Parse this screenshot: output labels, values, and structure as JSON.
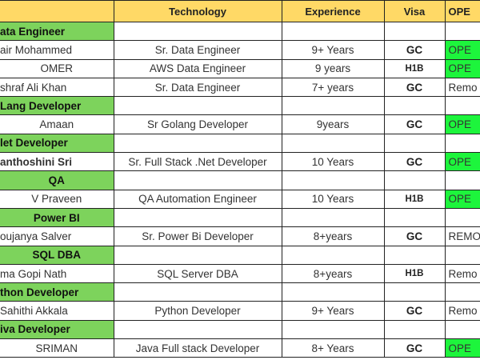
{
  "header": {
    "name": "",
    "technology": "Technology",
    "experience": "Experience",
    "visa": "Visa",
    "status": "OPE"
  },
  "colors": {
    "header_bg": "#ffd966",
    "category_bg": "#7dd35c",
    "open_bg": "#1df53c"
  },
  "rows": [
    {
      "type": "category",
      "name": "ata Engineer",
      "align": "l"
    },
    {
      "type": "candidate",
      "name": "air Mohammed",
      "align": "l",
      "technology": "Sr. Data Engineer",
      "experience": "9+ Years",
      "visa": "GC",
      "status": "OPE",
      "open": true
    },
    {
      "type": "candidate",
      "name": "OMER",
      "technology": "AWS Data Engineer",
      "experience": "9 years",
      "visa": "H1B",
      "status": "OPE",
      "open": true
    },
    {
      "type": "candidate",
      "name": "shraf Ali Khan",
      "align": "l",
      "technology": "Sr. Data Engineer",
      "experience": "7+ years",
      "visa": "GC",
      "status": "Remo",
      "open": false
    },
    {
      "type": "category",
      "name": "Lang Developer",
      "align": "l"
    },
    {
      "type": "candidate",
      "name": "Amaan",
      "technology": "Sr Golang Developer",
      "experience": "9years",
      "visa": "GC",
      "status": "OPE",
      "open": true
    },
    {
      "type": "category",
      "name": "let Developer",
      "align": "l"
    },
    {
      "type": "candidate",
      "name": "anthoshini Sri",
      "align": "l",
      "bold": true,
      "technology": "Sr. Full Stack .Net Developer",
      "experience": "10  Years",
      "visa": "GC",
      "status": "OPE",
      "open": true
    },
    {
      "type": "category",
      "name": "QA"
    },
    {
      "type": "candidate",
      "name": "V Praveen",
      "technology": "QA Automation Engineer",
      "experience": "10 Years",
      "visa": "H1B",
      "status": "OPE",
      "open": true
    },
    {
      "type": "category",
      "name": "Power BI"
    },
    {
      "type": "candidate",
      "name": "oujanya Salver",
      "align": "l",
      "technology": "Sr. Power Bi Developer",
      "experience": "8+years",
      "visa": "GC",
      "status": "REMO",
      "open": false
    },
    {
      "type": "category",
      "name": "SQL DBA"
    },
    {
      "type": "candidate",
      "name": "ma Gopi Nath",
      "align": "l",
      "technology": "SQL Server DBA",
      "experience": "8+years",
      "visa": "H1B",
      "status": "Remo",
      "open": false
    },
    {
      "type": "category",
      "name": "thon Developer",
      "align": "l"
    },
    {
      "type": "candidate",
      "name": "Sahithi Akkala",
      "align": "l",
      "technology": "Python Developer",
      "experience": "9+ Years",
      "visa": "GC",
      "status": "Remo",
      "open": false
    },
    {
      "type": "category",
      "name": "iva Developer",
      "align": "l"
    },
    {
      "type": "candidate",
      "name": "SRIMAN",
      "technology": "Java Full stack Developer",
      "experience": "8+ Years",
      "visa": "GC",
      "status": "OPE",
      "open": true
    }
  ]
}
